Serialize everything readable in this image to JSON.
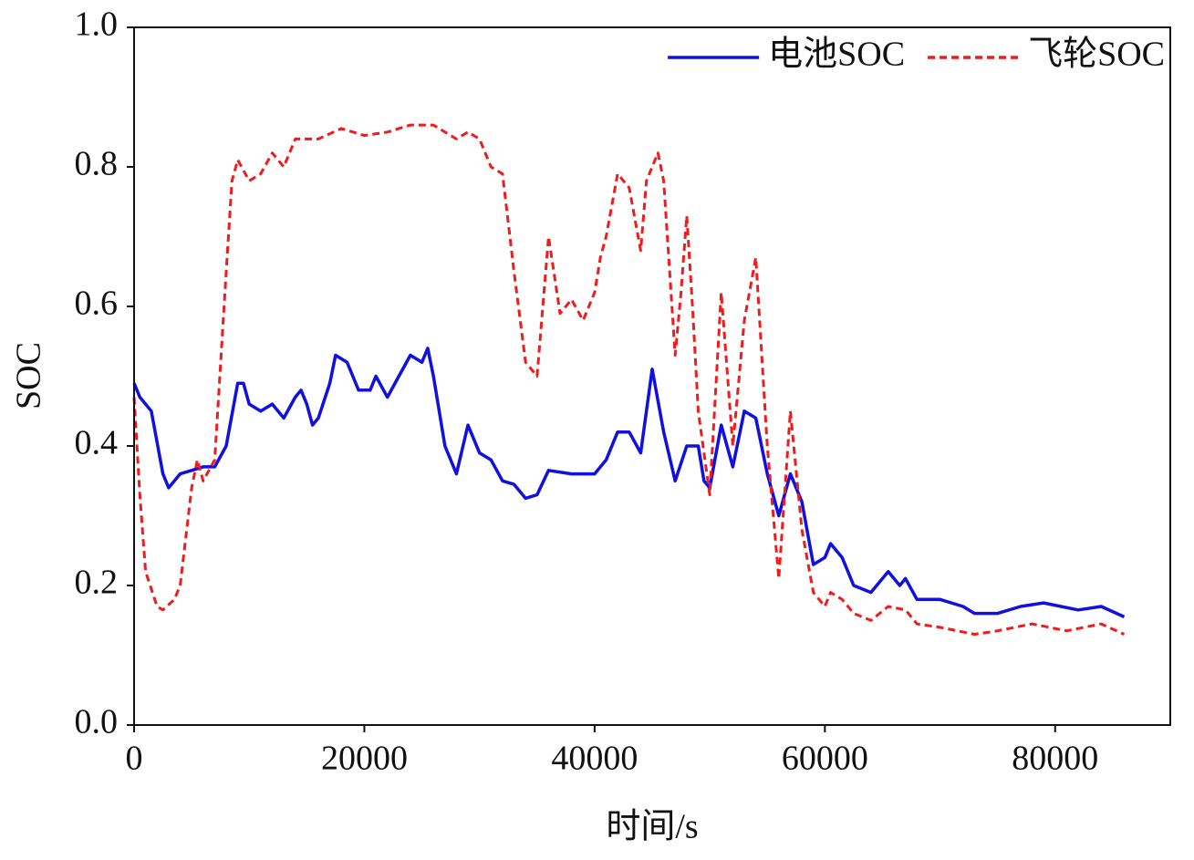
{
  "chart_data": {
    "type": "line",
    "xlabel": "时间/s",
    "ylabel": "SOC",
    "xlim": [
      0,
      90000
    ],
    "ylim": [
      0,
      1
    ],
    "xticks": [
      0,
      20000,
      40000,
      60000,
      80000
    ],
    "yticks": [
      {
        "value": 0,
        "label": "0.0"
      },
      0.2,
      0.4,
      0.6,
      0.8,
      {
        "value": 1,
        "label": "1.0"
      }
    ],
    "legend": "upper right",
    "series": [
      {
        "name": "电池SOC",
        "color": "#1010e0",
        "linestyle": "solid",
        "x": [
          0,
          500,
          1500,
          2500,
          3000,
          4000,
          5000,
          6000,
          7000,
          8000,
          9000,
          9500,
          10000,
          11000,
          12000,
          13000,
          14000,
          14500,
          15000,
          15500,
          16000,
          17000,
          17500,
          18500,
          19500,
          20500,
          21000,
          22000,
          23000,
          24000,
          25000,
          25500,
          26000,
          27000,
          28000,
          29000,
          30000,
          31000,
          32000,
          33000,
          34000,
          35000,
          36000,
          38000,
          40000,
          41000,
          42000,
          43000,
          44000,
          45000,
          46000,
          47000,
          48000,
          49000,
          49500,
          50000,
          51000,
          52000,
          53000,
          54000,
          55000,
          56000,
          57000,
          58000,
          59000,
          60000,
          60500,
          61500,
          62500,
          64000,
          65500,
          66500,
          67000,
          68000,
          70000,
          72000,
          73000,
          75000,
          77000,
          79000,
          82000,
          84000,
          86000
        ],
        "values": [
          0.49,
          0.47,
          0.45,
          0.36,
          0.34,
          0.36,
          0.365,
          0.37,
          0.37,
          0.4,
          0.49,
          0.49,
          0.46,
          0.45,
          0.46,
          0.44,
          0.47,
          0.48,
          0.46,
          0.43,
          0.44,
          0.49,
          0.53,
          0.52,
          0.48,
          0.48,
          0.5,
          0.47,
          0.5,
          0.53,
          0.52,
          0.54,
          0.5,
          0.4,
          0.36,
          0.43,
          0.39,
          0.38,
          0.35,
          0.345,
          0.325,
          0.33,
          0.365,
          0.36,
          0.36,
          0.38,
          0.42,
          0.42,
          0.39,
          0.51,
          0.42,
          0.35,
          0.4,
          0.4,
          0.35,
          0.34,
          0.43,
          0.37,
          0.45,
          0.44,
          0.36,
          0.3,
          0.36,
          0.32,
          0.23,
          0.24,
          0.26,
          0.24,
          0.2,
          0.19,
          0.22,
          0.2,
          0.21,
          0.18,
          0.18,
          0.17,
          0.16,
          0.16,
          0.17,
          0.175,
          0.165,
          0.17,
          0.155
        ]
      },
      {
        "name": "飞轮SOC",
        "color": "#ee1c1c",
        "linestyle": "dashed",
        "x": [
          0,
          500,
          1000,
          2000,
          2500,
          3500,
          4000,
          5000,
          5500,
          6000,
          7000,
          8000,
          8500,
          9000,
          10000,
          11000,
          12000,
          13000,
          14000,
          16000,
          18000,
          20000,
          22000,
          24000,
          26000,
          28000,
          29000,
          30000,
          31000,
          32000,
          33000,
          34000,
          35000,
          36000,
          37000,
          38000,
          39000,
          40000,
          40500,
          41000,
          42000,
          43000,
          44000,
          44500,
          45500,
          46000,
          47000,
          47500,
          48000,
          48500,
          49000,
          50000,
          51000,
          52000,
          53000,
          54000,
          55000,
          56000,
          57000,
          58000,
          59000,
          60000,
          60500,
          61500,
          62500,
          64000,
          65500,
          67000,
          68000,
          70000,
          73000,
          75000,
          78000,
          81000,
          84000,
          86000
        ],
        "values": [
          0.47,
          0.33,
          0.22,
          0.17,
          0.165,
          0.18,
          0.2,
          0.34,
          0.38,
          0.35,
          0.38,
          0.65,
          0.78,
          0.81,
          0.78,
          0.79,
          0.82,
          0.8,
          0.84,
          0.84,
          0.855,
          0.845,
          0.85,
          0.86,
          0.86,
          0.84,
          0.85,
          0.84,
          0.8,
          0.79,
          0.65,
          0.52,
          0.5,
          0.7,
          0.59,
          0.61,
          0.58,
          0.62,
          0.67,
          0.7,
          0.79,
          0.77,
          0.68,
          0.78,
          0.82,
          0.78,
          0.53,
          0.62,
          0.73,
          0.6,
          0.45,
          0.33,
          0.62,
          0.4,
          0.58,
          0.67,
          0.4,
          0.21,
          0.45,
          0.28,
          0.19,
          0.17,
          0.19,
          0.18,
          0.16,
          0.15,
          0.17,
          0.165,
          0.145,
          0.14,
          0.13,
          0.135,
          0.145,
          0.135,
          0.145,
          0.13
        ]
      }
    ]
  }
}
